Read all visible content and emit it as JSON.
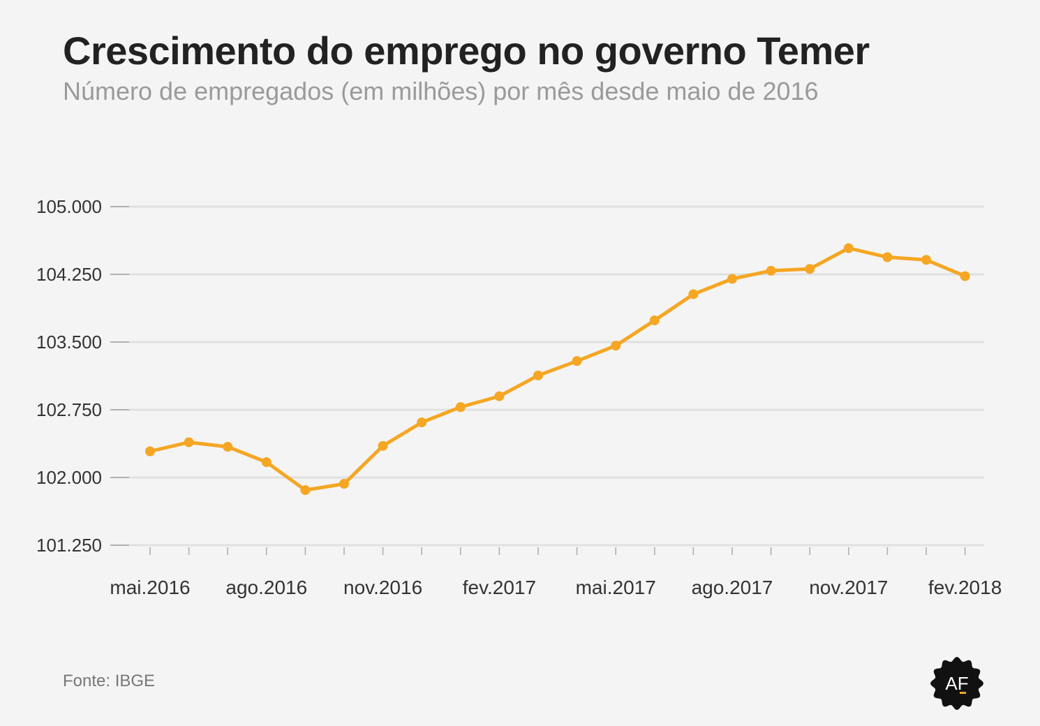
{
  "header": {
    "title": "Crescimento do emprego no governo Temer",
    "subtitle": "Número de empregados (em milhões) por mês desde maio de 2016"
  },
  "footer": {
    "source": "Fonte: IBGE",
    "logo_text": "AF"
  },
  "colors": {
    "line": "#f5a623",
    "grid": "#e0e0e0",
    "background": "#f4f4f4",
    "logo_bg": "#111111"
  },
  "chart_data": {
    "type": "line",
    "title": "Crescimento do emprego no governo Temer",
    "subtitle": "Número de empregados (em milhões) por mês desde maio de 2016",
    "xlabel": "",
    "ylabel": "",
    "ylim": [
      101250,
      105000
    ],
    "y_ticks": [
      105000,
      104250,
      103500,
      102750,
      102000,
      101250
    ],
    "y_tick_labels": [
      "105.000",
      "104.250",
      "103.500",
      "102.750",
      "102.000",
      "101.250"
    ],
    "x": [
      "mai.2016",
      "jun.2016",
      "jul.2016",
      "ago.2016",
      "set.2016",
      "out.2016",
      "nov.2016",
      "dez.2016",
      "jan.2017",
      "fev.2017",
      "mar.2017",
      "abr.2017",
      "mai.2017",
      "jun.2017",
      "jul.2017",
      "ago.2017",
      "set.2017",
      "out.2017",
      "nov.2017",
      "dez.2017",
      "jan.2018",
      "fev.2018"
    ],
    "x_tick_labels": [
      {
        "index": 0,
        "label": "mai.2016"
      },
      {
        "index": 3,
        "label": "ago.2016"
      },
      {
        "index": 6,
        "label": "nov.2016"
      },
      {
        "index": 9,
        "label": "fev.2017"
      },
      {
        "index": 12,
        "label": "mai.2017"
      },
      {
        "index": 15,
        "label": "ago.2017"
      },
      {
        "index": 18,
        "label": "nov.2017"
      },
      {
        "index": 21,
        "label": "fev.2018"
      }
    ],
    "series": [
      {
        "values": [
          102290,
          102390,
          102340,
          102170,
          101860,
          101930,
          102350,
          102610,
          102780,
          102900,
          103130,
          103290,
          103460,
          103740,
          104030,
          104200,
          104290,
          104310,
          104540,
          104440,
          104410,
          104230
        ]
      }
    ],
    "grid": true,
    "legend": "none"
  }
}
